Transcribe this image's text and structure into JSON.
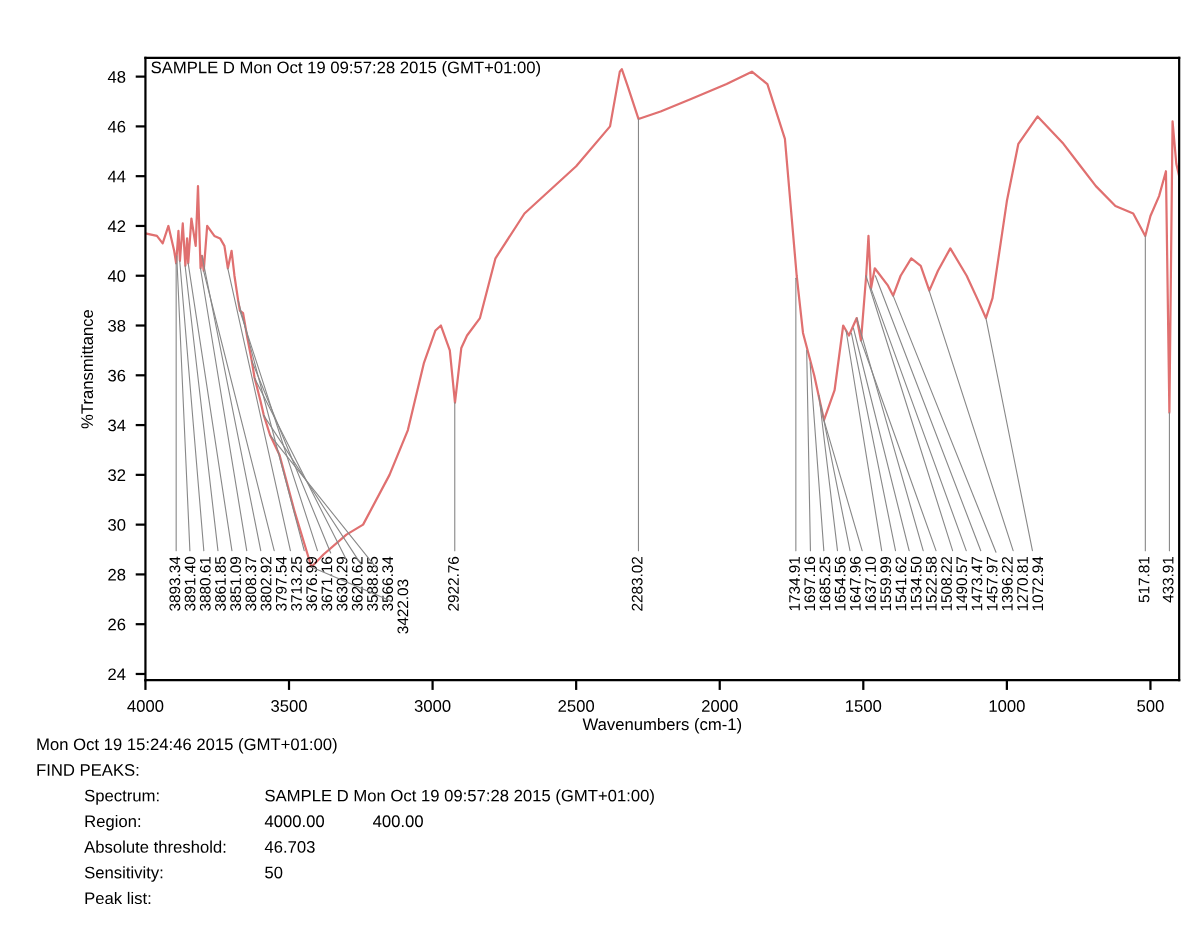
{
  "chart_data": {
    "type": "line",
    "title": "SAMPLE D Mon Oct 19 09:57:28 2015 (GMT+01:00)",
    "xlabel": "Wavenumbers (cm-1)",
    "ylabel": "%Transmittance",
    "xlim": [
      4000,
      400
    ],
    "ylim": [
      23.75,
      48.75
    ],
    "xticks": [
      4000,
      3500,
      3000,
      2500,
      2000,
      1500,
      1000,
      500
    ],
    "yticks": [
      24,
      26,
      28,
      30,
      32,
      34,
      36,
      38,
      40,
      42,
      44,
      46,
      48
    ],
    "grid": false,
    "series": [
      {
        "color": "#e07070",
        "x": [
          4000,
          3960,
          3940,
          3920,
          3900,
          3893,
          3885,
          3880,
          3870,
          3861,
          3855,
          3851,
          3840,
          3825,
          3817,
          3810,
          3808,
          3803,
          3797,
          3785,
          3760,
          3740,
          3725,
          3713,
          3700,
          3690,
          3677,
          3671,
          3660,
          3645,
          3630,
          3620,
          3600,
          3588,
          3566,
          3533,
          3480,
          3422,
          3380,
          3300,
          3242,
          3150,
          3086,
          3030,
          2990,
          2971,
          2940,
          2922,
          2900,
          2880,
          2835,
          2781,
          2680,
          2500,
          2382,
          2348,
          2341,
          2320,
          2283,
          2206,
          2100,
          1976,
          1888,
          1834,
          1773,
          1732,
          1710,
          1671,
          1637,
          1600,
          1570,
          1550,
          1523,
          1508,
          1490,
          1482,
          1473,
          1460,
          1414,
          1396,
          1370,
          1333,
          1300,
          1270,
          1240,
          1197,
          1140,
          1100,
          1073,
          1050,
          1000,
          960,
          893,
          803,
          750,
          690,
          622,
          560,
          518,
          500,
          470,
          446,
          434,
          423,
          410,
          400
        ],
        "values": [
          41.7,
          41.6,
          41.3,
          42.0,
          41.0,
          40.5,
          41.8,
          40.6,
          42.1,
          40.4,
          41.5,
          40.5,
          42.3,
          41.2,
          43.6,
          41.0,
          40.3,
          40.8,
          40.2,
          42.0,
          41.6,
          41.5,
          41.2,
          40.3,
          41.0,
          40.0,
          39.0,
          38.6,
          38.5,
          37.5,
          36.6,
          35.9,
          35.0,
          34.4,
          33.6,
          32.8,
          30.5,
          28.3,
          28.8,
          29.6,
          30.0,
          32.0,
          33.8,
          36.5,
          37.8,
          38.0,
          37.0,
          34.9,
          37.1,
          37.6,
          38.3,
          40.7,
          42.5,
          44.4,
          46.0,
          48.2,
          48.3,
          47.6,
          46.3,
          46.6,
          47.1,
          47.7,
          48.2,
          47.7,
          45.5,
          40.0,
          37.7,
          36.0,
          34.2,
          35.4,
          38.0,
          37.6,
          38.3,
          37.4,
          40.0,
          41.6,
          39.5,
          40.3,
          39.6,
          39.2,
          40.0,
          40.7,
          40.4,
          39.4,
          40.2,
          41.1,
          40.0,
          39.0,
          38.3,
          39.1,
          43.0,
          45.3,
          46.4,
          45.3,
          44.5,
          43.6,
          42.8,
          42.5,
          41.6,
          42.4,
          43.2,
          44.2,
          34.5,
          46.2,
          44.5,
          44.0
        ]
      }
    ],
    "annotations": [
      {
        "text": "3893.34",
        "x": 3893,
        "y": 40.5
      },
      {
        "text": "3891.40",
        "x": 3891,
        "y": 40.8
      },
      {
        "text": "3880.61",
        "x": 3880.61,
        "y": 40.6
      },
      {
        "text": "3861.85",
        "x": 3861.85,
        "y": 40.4
      },
      {
        "text": "3851.09",
        "x": 3851.09,
        "y": 40.5
      },
      {
        "text": "3808.37",
        "x": 3808.37,
        "y": 40.3
      },
      {
        "text": "3802.92",
        "x": 3802.92,
        "y": 40.8
      },
      {
        "text": "3797.54",
        "x": 3797.54,
        "y": 40.2
      },
      {
        "text": "3713.25",
        "x": 3713.25,
        "y": 40.3
      },
      {
        "text": "3676.99",
        "x": 3676.99,
        "y": 39.0
      },
      {
        "text": "3671.16",
        "x": 3671.16,
        "y": 38.6
      },
      {
        "text": "3630.29",
        "x": 3630.29,
        "y": 36.6
      },
      {
        "text": "3620.62",
        "x": 3620.62,
        "y": 35.9
      },
      {
        "text": "3588.85",
        "x": 3588.85,
        "y": 34.4
      },
      {
        "text": "3566.34",
        "x": 3566.34,
        "y": 33.6
      },
      {
        "text": "3422.03",
        "x": 3422.03,
        "y": 28.3
      },
      {
        "text": "2922.76",
        "x": 2922.76,
        "y": 34.9
      },
      {
        "text": "2283.02",
        "x": 2283.02,
        "y": 46.3
      },
      {
        "text": "1734.91",
        "x": 1734.91,
        "y": 39.9
      },
      {
        "text": "1697.16",
        "x": 1697.16,
        "y": 37.0
      },
      {
        "text": "1685.25",
        "x": 1685.25,
        "y": 36.5
      },
      {
        "text": "1654.56",
        "x": 1654.56,
        "y": 35.2
      },
      {
        "text": "1647.96",
        "x": 1647.96,
        "y": 34.8
      },
      {
        "text": "1637.10",
        "x": 1637.1,
        "y": 34.2
      },
      {
        "text": "1559.99",
        "x": 1559.99,
        "y": 37.8
      },
      {
        "text": "1541.62",
        "x": 1541.62,
        "y": 37.7
      },
      {
        "text": "1534.50",
        "x": 1534.5,
        "y": 37.9
      },
      {
        "text": "1522.58",
        "x": 1522.58,
        "y": 38.3
      },
      {
        "text": "1508.22",
        "x": 1508.22,
        "y": 37.4
      },
      {
        "text": "1490.57",
        "x": 1490.57,
        "y": 40.0
      },
      {
        "text": "1473.47",
        "x": 1473.47,
        "y": 39.5
      },
      {
        "text": "1457.97",
        "x": 1457.97,
        "y": 40.0
      },
      {
        "text": "1396.22",
        "x": 1396.22,
        "y": 39.2
      },
      {
        "text": "1270.81",
        "x": 1270.81,
        "y": 39.4
      },
      {
        "text": "1072.94",
        "x": 1072.94,
        "y": 38.3
      },
      {
        "text": "517.81",
        "x": 517.81,
        "y": 41.6
      },
      {
        "text": "433.91",
        "x": 433.91,
        "y": 34.5
      },
      "Mon Oct 19 15:24:46 2015 (GMT+01:00)",
      "FIND PEAKS:",
      "Spectrum:",
      "SAMPLE D Mon Oct 19 09:57:28 2015 (GMT+01:00)",
      "Region:",
      "4000.00",
      "400.00",
      "Absolute threshold:",
      "46.703",
      "Sensitivity:",
      "50",
      "Peak list:"
    ]
  }
}
